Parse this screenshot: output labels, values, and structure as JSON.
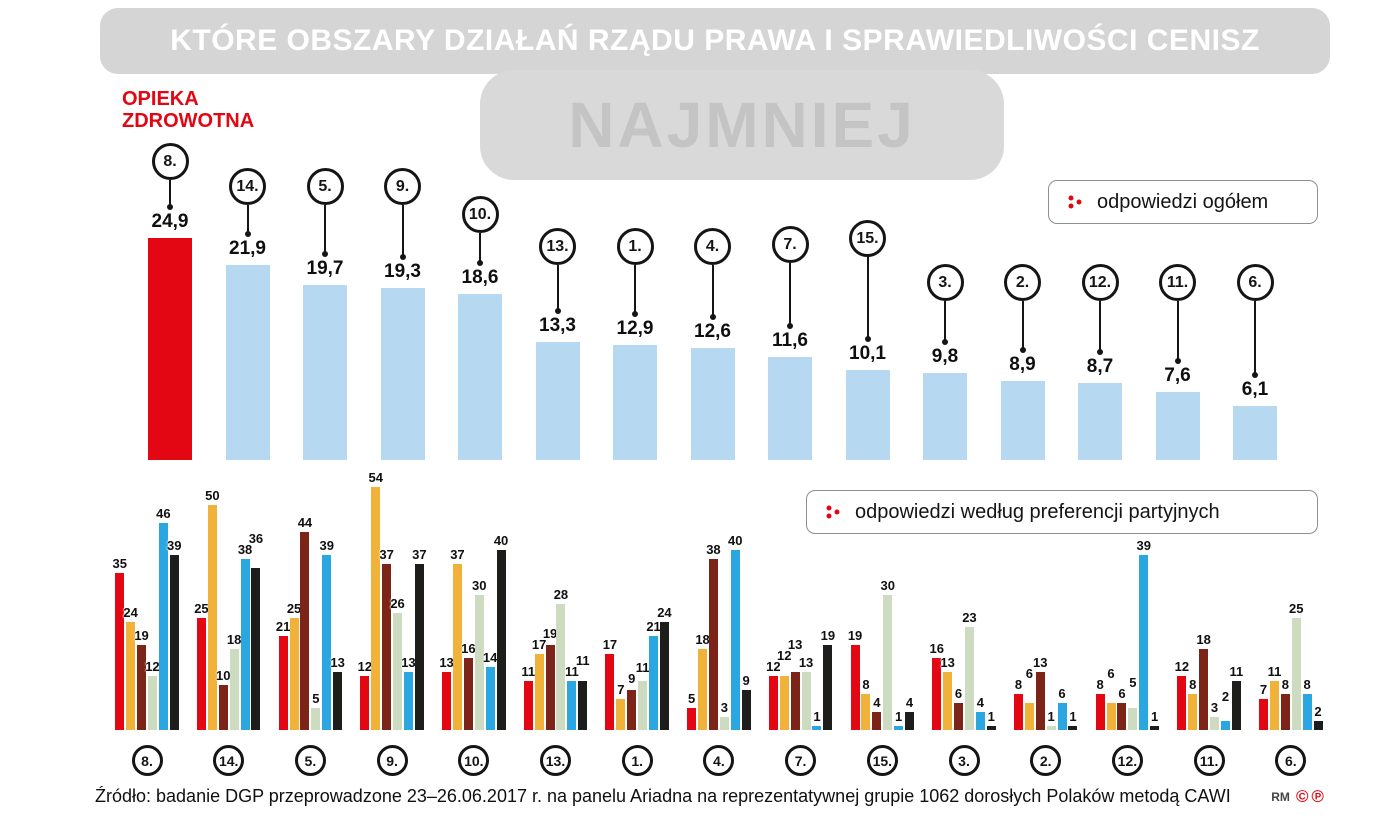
{
  "title": "KTÓRE OBSZARY DZIAŁAŃ RZĄDU PRAWA I SPRAWIEDLIWOŚCI CENISZ",
  "watermark": "NAJMNIEJ",
  "highlight_label": "OPIEKA\nZDROWOTNA",
  "legends": {
    "overall": "odpowiedzi ogółem",
    "party": "odpowiedzi według preferencji partyjnych"
  },
  "source": "Źródło: badanie DGP przeprowadzone 23–26.06.2017 r. na panelu Ariadna na reprezentatywnej grupie 1062 dorosłych Polaków metodą CAWI",
  "credits": {
    "initials": "RM",
    "copyright": "©",
    "phonogram": "℗"
  },
  "colors": {
    "accent_red": "#e30613",
    "light_blue_bar": "#b6d9f1",
    "title_bar_gray": "#d5d5d5",
    "watermark_gray": "#c4c4c4",
    "circle_outline": "#151515"
  },
  "chart_data": [
    {
      "type": "bar",
      "name": "odpowiedzi ogółem",
      "categories": [
        "8.",
        "14.",
        "5.",
        "9.",
        "10.",
        "13.",
        "1.",
        "4.",
        "7.",
        "15.",
        "3.",
        "2.",
        "12.",
        "11.",
        "6."
      ],
      "values": [
        24.9,
        21.9,
        19.7,
        19.3,
        18.6,
        13.3,
        12.9,
        12.6,
        11.6,
        10.1,
        9.8,
        8.9,
        8.7,
        7.6,
        6.1
      ],
      "value_labels": [
        "24,9",
        "21,9",
        "19,7",
        "19,3",
        "18,6",
        "13,3",
        "12,9",
        "12,6",
        "11,6",
        "10,1",
        "9,8",
        "8,9",
        "8,7",
        "7,6",
        "6,1"
      ],
      "highlight_index": 0,
      "highlight_category_label": "OPIEKA ZDROWOTNA",
      "highlight_color": "#e30613",
      "bar_color": "#b6d9f1",
      "ylim": [
        0,
        27
      ],
      "grid": false,
      "legend_position": "top-right"
    },
    {
      "type": "bar",
      "name": "odpowiedzi według preferencji partyjnych",
      "categories": [
        "8.",
        "14.",
        "5.",
        "9.",
        "10.",
        "13.",
        "1.",
        "4.",
        "7.",
        "15.",
        "3.",
        "2.",
        "12.",
        "11.",
        "6."
      ],
      "series": [
        {
          "name": "red",
          "color": "#e30613",
          "values": [
            35,
            25,
            21,
            12,
            13,
            11,
            17,
            5,
            12,
            19,
            16,
            8,
            8,
            12,
            7
          ]
        },
        {
          "name": "yellow",
          "color": "#f1b23a",
          "values": [
            24,
            50,
            25,
            54,
            37,
            17,
            7,
            18,
            12,
            8,
            13,
            6,
            6,
            8,
            11
          ]
        },
        {
          "name": "dark-brown",
          "color": "#7c2418",
          "values": [
            19,
            10,
            44,
            37,
            16,
            19,
            9,
            38,
            13,
            4,
            6,
            13,
            6,
            18,
            8
          ]
        },
        {
          "name": "pale-green",
          "color": "#cddcc1",
          "values": [
            12,
            18,
            5,
            26,
            30,
            28,
            11,
            3,
            13,
            30,
            23,
            1,
            5,
            3,
            25
          ]
        },
        {
          "name": "light-blue",
          "color": "#2aa7e0",
          "values": [
            46,
            38,
            39,
            13,
            14,
            11,
            21,
            40,
            1,
            1,
            4,
            6,
            39,
            2,
            8
          ]
        },
        {
          "name": "black",
          "color": "#1d1d1b",
          "values": [
            39,
            36,
            13,
            37,
            40,
            11,
            24,
            9,
            19,
            4,
            1,
            1,
            1,
            11,
            2
          ]
        }
      ],
      "ylim": [
        0,
        60
      ],
      "grid": false,
      "legend_position": "top-right"
    }
  ]
}
